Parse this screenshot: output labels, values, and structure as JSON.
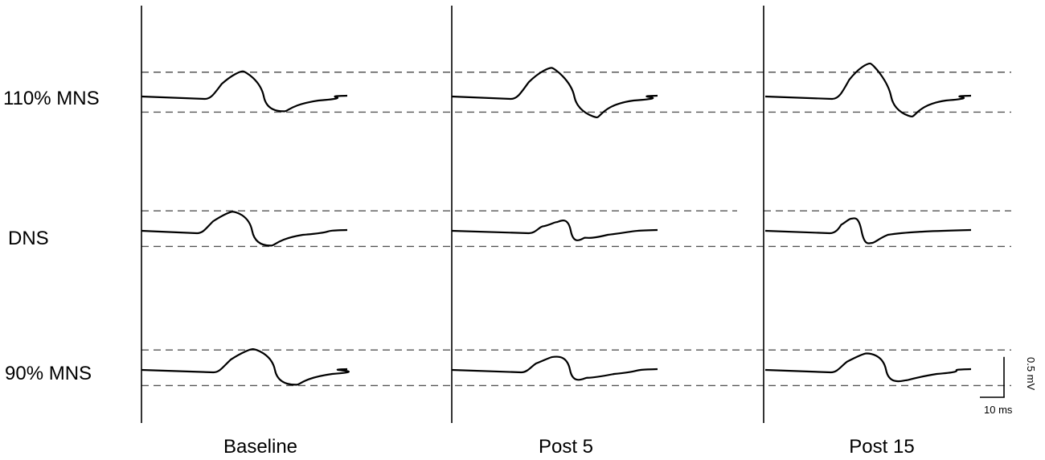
{
  "chart_data": {
    "type": "line",
    "rows": [
      {
        "label": "110% MNS"
      },
      {
        "label": "DNS"
      },
      {
        "label": "90% MNS"
      }
    ],
    "columns": [
      {
        "label": "Baseline"
      },
      {
        "label": "Post 5"
      },
      {
        "label": "Post 15"
      }
    ],
    "units": {
      "amplitude": "mV",
      "time": "ms"
    },
    "scale_bar": {
      "amplitude_mV": 0.5,
      "time_ms": 10,
      "amplitude_label": "0.5 mV",
      "time_label": "10 ms"
    },
    "reference_lines": [
      {
        "row": "110% MNS",
        "upper_mV": 0.28,
        "lower_mV": -0.18
      },
      {
        "row": "DNS",
        "upper_mV": 0.23,
        "lower_mV": -0.18
      },
      {
        "row": "90% MNS",
        "upper_mV": 0.23,
        "lower_mV": -0.18
      }
    ],
    "traces": [
      {
        "row": "110% MNS",
        "column": "Baseline",
        "peak_mV": 0.29,
        "peak_ms": 20.0,
        "trough_mV": -0.17,
        "trough_ms": 28.3
      },
      {
        "row": "110% MNS",
        "column": "Post 5",
        "peak_mV": 0.33,
        "peak_ms": 19.7,
        "trough_mV": -0.24,
        "trough_ms": 28.7
      },
      {
        "row": "110% MNS",
        "column": "Post 15",
        "peak_mV": 0.38,
        "peak_ms": 20.7,
        "trough_mV": -0.23,
        "trough_ms": 29.0
      },
      {
        "row": "DNS",
        "column": "Baseline",
        "peak_mV": 0.22,
        "peak_ms": 18.0,
        "trough_mV": -0.17,
        "trough_ms": 25.7
      },
      {
        "row": "DNS",
        "column": "Post 5",
        "peak_mV": 0.1,
        "peak_ms": 20.7,
        "trough_mV": -0.08,
        "trough_ms": 26.3
      },
      {
        "row": "DNS",
        "column": "Post 15",
        "peak_mV": 0.14,
        "peak_ms": 17.0,
        "trough_mV": -0.14,
        "trough_ms": 21.0
      },
      {
        "row": "90% MNS",
        "column": "Baseline",
        "peak_mV": 0.24,
        "peak_ms": 22.0,
        "trough_mV": -0.17,
        "trough_ms": 30.7
      },
      {
        "row": "90% MNS",
        "column": "Post 5",
        "peak_mV": 0.15,
        "peak_ms": 20.0,
        "trough_mV": -0.09,
        "trough_ms": 26.7
      },
      {
        "row": "90% MNS",
        "column": "Post 15",
        "peak_mV": 0.19,
        "peak_ms": 20.0,
        "trough_mV": -0.12,
        "trough_ms": 27.7
      }
    ]
  }
}
